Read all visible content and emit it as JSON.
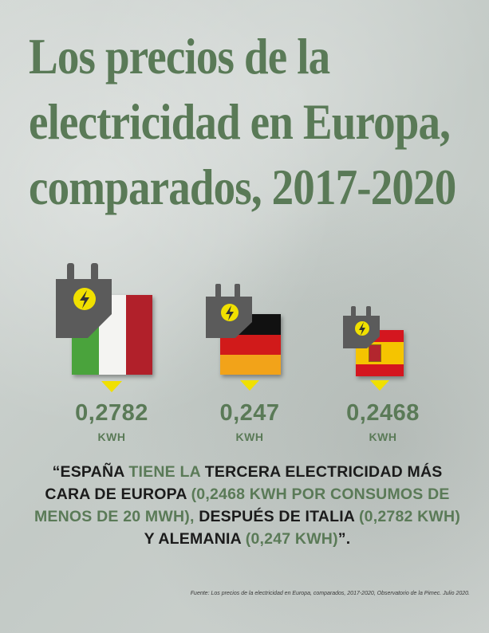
{
  "title": {
    "line1": "Los precios de la",
    "line2": "electricidad en Europa,",
    "line3": "comparados, 2017-2020"
  },
  "countries": [
    {
      "name": "italy-flag-icon",
      "value": "0,2782",
      "unit": "KWH"
    },
    {
      "name": "germany-flag-icon",
      "value": "0,247",
      "unit": "KWH"
    },
    {
      "name": "spain-flag-icon",
      "value": "0,2468",
      "unit": "KWH"
    }
  ],
  "quote": {
    "p1": "“ESPAÑA",
    "p2": " TIENE LA ",
    "p3": "TERCERA ELECTRICIDAD MÁS CARA DE EUROPA",
    "p4": " (0,2468 KWH POR CONSUMOS DE MENOS DE 20 MWH),",
    "p5": " DESPUÉS DE ITALIA",
    "p6": " (0,2782 KWH)",
    "p7": " Y ALEMANIA",
    "p8": " (0,247 KWH)",
    "p9": "”."
  },
  "source": "Fuente: Los precios de la electricidad en Europa, comparados, 2017-2020, Observatorio de la Pimec. Julio 2020.",
  "colors": {
    "green": "#5a7a57",
    "yellow": "#f0e000",
    "plug_gray": "#5b5b5b"
  }
}
